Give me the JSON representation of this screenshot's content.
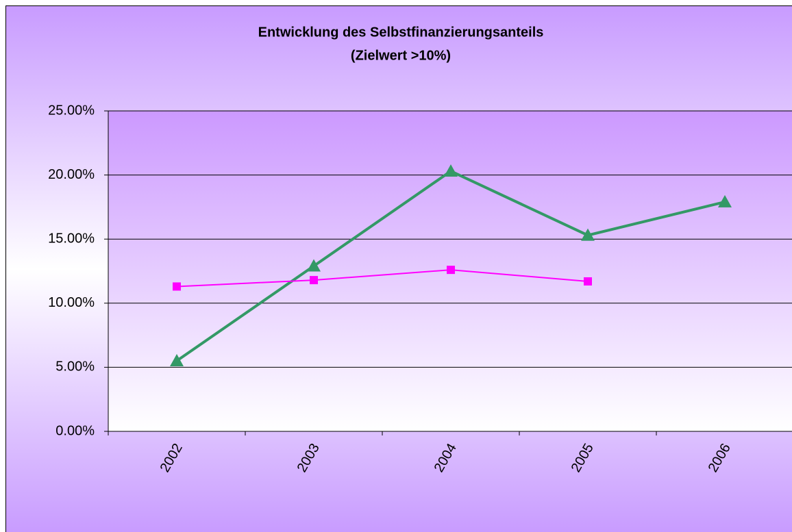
{
  "chart_data": {
    "type": "line",
    "title": "Entwicklung des Selbstfinanzierungsanteils",
    "subtitle": "(Zielwert >10%)",
    "categories": [
      "2002",
      "2003",
      "2004",
      "2005",
      "2006"
    ],
    "series": [
      {
        "color": "#339966",
        "marker": "triangle",
        "values": [
          5.5,
          12.9,
          20.3,
          15.3,
          17.9
        ]
      },
      {
        "color": "#ff00ff",
        "marker": "square",
        "values": [
          11.3,
          11.8,
          12.6,
          11.7,
          null
        ]
      }
    ],
    "ylim": [
      0,
      25
    ],
    "yticks": [
      {
        "value": 0,
        "label": "0.00%"
      },
      {
        "value": 5,
        "label": "5.00%"
      },
      {
        "value": 10,
        "label": "10.00%"
      },
      {
        "value": 15,
        "label": "15.00%"
      },
      {
        "value": 20,
        "label": "20.00%"
      },
      {
        "value": 25,
        "label": "25.00%"
      }
    ],
    "grid": true
  }
}
